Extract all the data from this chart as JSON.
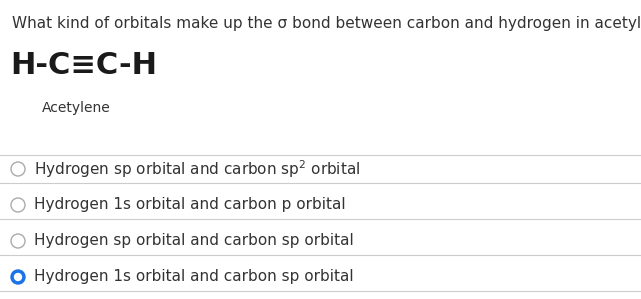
{
  "question": "What kind of orbitals make up the σ bond between carbon and hydrogen in acetylene?",
  "chemical_formula_text": "H-C≡C-H",
  "chemical_name": "Acetylene",
  "choices": [
    "Hydrogen sp orbital and carbon sp$^2$ orbital",
    "Hydrogen 1s orbital and carbon p orbital",
    "Hydrogen sp orbital and carbon sp orbital",
    "Hydrogen 1s orbital and carbon sp orbital"
  ],
  "correct_index": 3,
  "bg_color": "#ffffff",
  "text_color": "#333333",
  "circle_color_unselected": "#aaaaaa",
  "circle_color_selected": "#1a73e8",
  "divider_color": "#cccccc",
  "question_fontsize": 11,
  "formula_fontsize": 22,
  "label_fontsize": 10,
  "choice_fontsize": 11
}
